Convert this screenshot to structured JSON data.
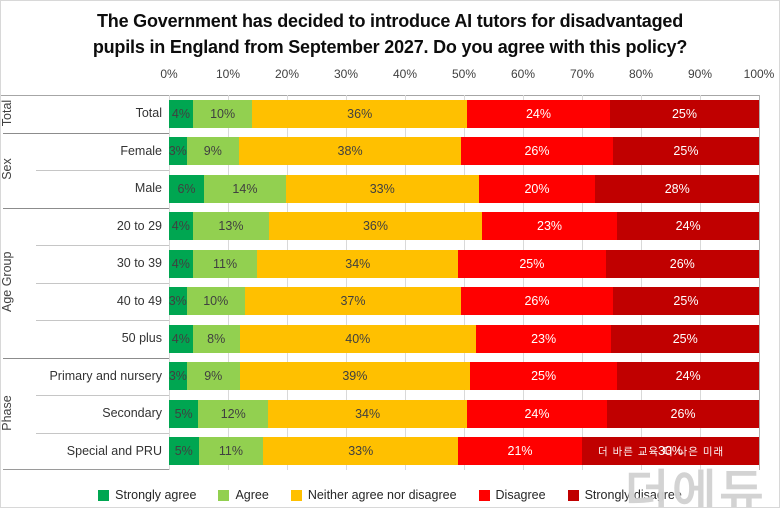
{
  "title": {
    "line1": "The Government has decided to introduce AI tutors for disadvantaged",
    "line2": "pupils in England from September 2027. Do you agree with this policy?"
  },
  "watermark": {
    "small_text": "더 바른 교육 더 나은 미래",
    "big_text": "더에듀"
  },
  "colors": {
    "strongly_agree": "#00A651",
    "agree": "#92D050",
    "neither": "#FFC000",
    "disagree": "#FF0000",
    "strongly_disagree": "#C00000",
    "label_dark": "#404040",
    "label_light": "#FFFFFF"
  },
  "chart_data": {
    "type": "bar",
    "subtype": "stacked-horizontal-percent",
    "title": "The Government has decided to introduce AI tutors for disadvantaged pupils in England from September 2027. Do you agree with this policy?",
    "xlabel": "",
    "ylabel": "",
    "x_axis": {
      "position": "top",
      "min": 0,
      "max": 100,
      "tick_step": 10,
      "tick_labels": [
        "0%",
        "10%",
        "20%",
        "30%",
        "40%",
        "50%",
        "60%",
        "70%",
        "80%",
        "90%",
        "100%"
      ]
    },
    "grid": true,
    "legend_position": "bottom",
    "series": [
      {
        "name": "Strongly agree",
        "color": "#00A651",
        "text_color": "#404040"
      },
      {
        "name": "Agree",
        "color": "#92D050",
        "text_color": "#404040"
      },
      {
        "name": "Neither agree nor disagree",
        "color": "#FFC000",
        "text_color": "#404040"
      },
      {
        "name": "Disagree",
        "color": "#FF0000",
        "text_color": "#FFFFFF"
      },
      {
        "name": "Strongly disagree",
        "color": "#C00000",
        "text_color": "#FFFFFF"
      }
    ],
    "groups": [
      {
        "label": "Total",
        "span": 1
      },
      {
        "label": "Sex",
        "span": 2
      },
      {
        "label": "Age Group",
        "span": 4
      },
      {
        "label": "Phase",
        "span": 3
      }
    ],
    "rows": [
      {
        "group": "Total",
        "label": "Total",
        "values": [
          4,
          10,
          36,
          24,
          25
        ]
      },
      {
        "group": "Sex",
        "label": "Female",
        "values": [
          3,
          9,
          38,
          26,
          25
        ]
      },
      {
        "group": "Sex",
        "label": "Male",
        "values": [
          6,
          14,
          33,
          20,
          28
        ]
      },
      {
        "group": "Age Group",
        "label": "20 to 29",
        "values": [
          4,
          13,
          36,
          23,
          24
        ]
      },
      {
        "group": "Age Group",
        "label": "30 to 39",
        "values": [
          4,
          11,
          34,
          25,
          26
        ]
      },
      {
        "group": "Age Group",
        "label": "40 to 49",
        "values": [
          3,
          10,
          37,
          26,
          25
        ]
      },
      {
        "group": "Age Group",
        "label": "50 plus",
        "values": [
          4,
          8,
          40,
          23,
          25
        ]
      },
      {
        "group": "Phase",
        "label": "Primary and nursery",
        "values": [
          3,
          9,
          39,
          25,
          24
        ]
      },
      {
        "group": "Phase",
        "label": "Secondary",
        "values": [
          5,
          12,
          34,
          24,
          26
        ]
      },
      {
        "group": "Phase",
        "label": "Special and PRU",
        "values": [
          5,
          11,
          33,
          21,
          30
        ]
      }
    ],
    "value_label_format": "{v}%"
  }
}
